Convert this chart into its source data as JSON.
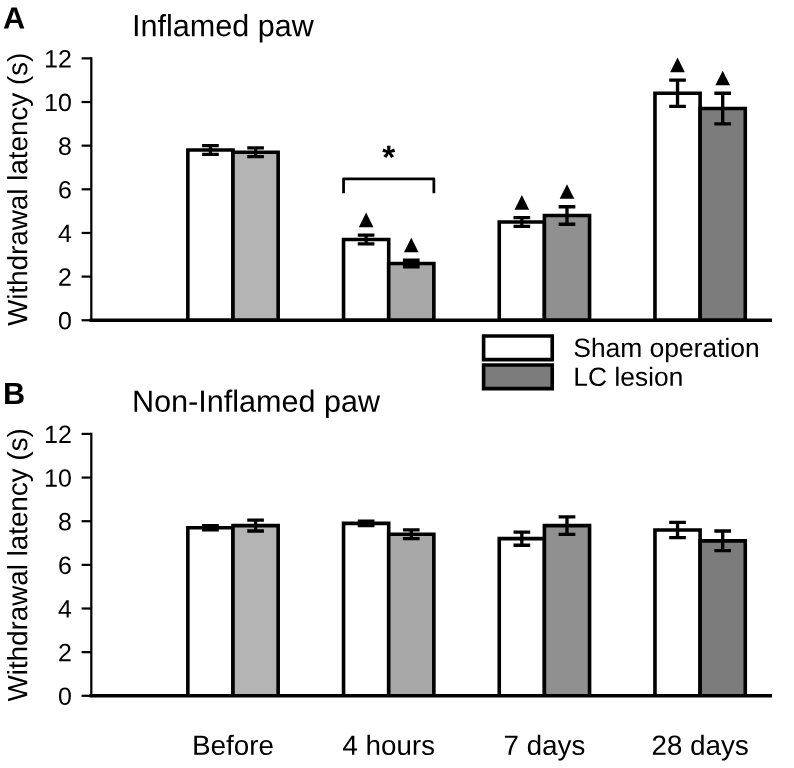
{
  "chart_data": [
    {
      "type": "bar",
      "title": "Inflamed paw",
      "ylabel": "Withdrawal latency (s)",
      "categories": [
        null,
        null,
        null,
        null
      ],
      "tick_labels": "y",
      "ylim": [
        0,
        12
      ],
      "yticks": [
        0,
        2,
        4,
        6,
        8,
        10,
        12
      ],
      "grid": false,
      "legend": "bottom right",
      "series": [
        {
          "name": "Sham operation",
          "color": "#ffffff",
          "values": [
            7.8,
            3.7,
            4.5,
            10.4
          ],
          "errors": [
            0.2,
            0.2,
            0.2,
            0.6
          ],
          "value_labels": [
            null,
            "▲",
            "▲",
            "▲"
          ]
        },
        {
          "name": "LC lesion",
          "colors": [
            "#b4b4b4",
            "#a8a8a8",
            "#909090",
            "#7c7c7c"
          ],
          "values": [
            7.7,
            2.6,
            4.8,
            9.7
          ],
          "errors": [
            0.2,
            0.15,
            0.4,
            0.7
          ],
          "value_labels": [
            null,
            "▲",
            "▲",
            "▲"
          ]
        }
      ],
      "annotations": [
        "A",
        "*"
      ]
    },
    {
      "type": "bar",
      "title": "Non-Inflamed paw",
      "ylabel": "Withdrawal latency (s)",
      "categories": [
        "Before",
        "4 hours",
        "7 days",
        "28 days"
      ],
      "ylim": [
        0,
        12
      ],
      "yticks": [
        0,
        2,
        4,
        6,
        8,
        10,
        12
      ],
      "grid": false,
      "series": [
        {
          "color": "#ffffff",
          "values": [
            7.7,
            7.9,
            7.2,
            7.6
          ],
          "errors": [
            0.1,
            0.1,
            0.3,
            0.35
          ]
        },
        {
          "colors": [
            "#b4b4b4",
            "#a8a8a8",
            "#909090",
            "#7c7c7c"
          ],
          "values": [
            7.8,
            7.4,
            7.8,
            7.1
          ],
          "errors": [
            0.25,
            0.2,
            0.4,
            0.45
          ]
        }
      ],
      "annotations": [
        "B"
      ]
    }
  ]
}
